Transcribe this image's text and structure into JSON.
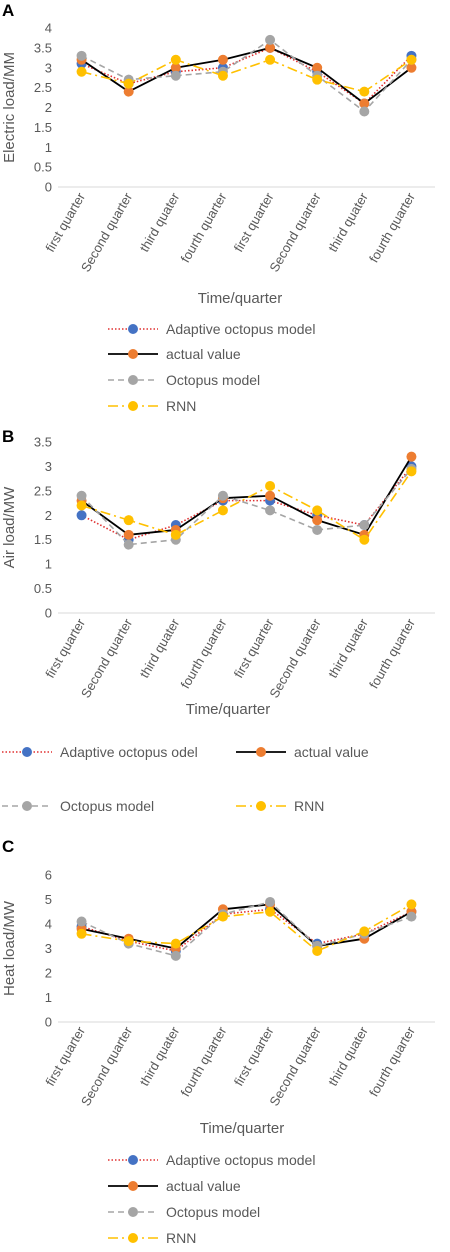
{
  "chart_data": [
    {
      "panel_label": "A",
      "type": "line",
      "ylabel": "Electric load/MM",
      "xlabel": "Time/quarter",
      "categories": [
        "first quarter",
        "Second quarter",
        "third quater",
        "fourth quarter",
        "first quarter",
        "Second quarter",
        "third quater",
        "fourth quarter"
      ],
      "ylim": [
        0,
        4
      ],
      "yticks": [
        "0",
        "0.5",
        "1",
        "1.5",
        "2",
        "2.5",
        "3",
        "3.5",
        "4"
      ],
      "legend": "bottom",
      "series": [
        {
          "name": "Adaptive octopus model",
          "values": [
            3.1,
            2.6,
            2.9,
            3.0,
            3.5,
            2.9,
            2.1,
            3.3
          ],
          "color": "#4472c4",
          "line_color": "#e03030",
          "line": "dotted"
        },
        {
          "name": "actual value",
          "values": [
            3.2,
            2.4,
            3.0,
            3.2,
            3.5,
            3.0,
            2.1,
            3.0
          ],
          "color": "#ed7d31",
          "line_color": "#000000",
          "line": "solid"
        },
        {
          "name": "Octopus model",
          "values": [
            3.3,
            2.7,
            2.8,
            2.9,
            3.7,
            2.8,
            1.9,
            3.2
          ],
          "color": "#a5a5a5",
          "line_color": "#a5a5a5",
          "line": "dashed"
        },
        {
          "name": "RNN",
          "values": [
            2.9,
            2.6,
            3.2,
            2.8,
            3.2,
            2.7,
            2.4,
            3.2
          ],
          "color": "#ffc000",
          "line_color": "#ffc000",
          "line": "dashdot"
        }
      ]
    },
    {
      "panel_label": "B",
      "type": "line",
      "ylabel": "Air load/MW",
      "xlabel": "Time/quarter",
      "categories": [
        "first quarter",
        "Second quarter",
        "third quater",
        "fourth quarter",
        "first quarter",
        "Second quarter",
        "third quater",
        "fourth quarter"
      ],
      "ylim": [
        0,
        3.5
      ],
      "yticks": [
        "0",
        "0.5",
        "1",
        "1.5",
        "2",
        "2.5",
        "3",
        "3.5"
      ],
      "legend": "bottom",
      "series": [
        {
          "name": "Adaptive octopus odel",
          "values": [
            2.0,
            1.5,
            1.8,
            2.3,
            2.3,
            2.0,
            1.8,
            3.0
          ],
          "color": "#4472c4",
          "line_color": "#e03030",
          "line": "dotted"
        },
        {
          "name": "actual value",
          "values": [
            2.3,
            1.6,
            1.7,
            2.35,
            2.4,
            1.9,
            1.6,
            3.2
          ],
          "color": "#ed7d31",
          "line_color": "#000000",
          "line": "solid"
        },
        {
          "name": "Octopus model",
          "values": [
            2.4,
            1.4,
            1.5,
            2.4,
            2.1,
            1.7,
            1.8,
            2.95
          ],
          "color": "#a5a5a5",
          "line_color": "#a5a5a5",
          "line": "dashed"
        },
        {
          "name": "RNN",
          "values": [
            2.2,
            1.9,
            1.6,
            2.1,
            2.6,
            2.1,
            1.5,
            2.9
          ],
          "color": "#ffc000",
          "line_color": "#ffc000",
          "line": "dashdot"
        }
      ]
    },
    {
      "panel_label": "C",
      "type": "line",
      "ylabel": "Heat load/MW",
      "xlabel": "Time/quarter",
      "categories": [
        "first quarter",
        "Second quarter",
        "third quater",
        "fourth quarter",
        "first quarter",
        "Second quarter",
        "third quater",
        "fourth quarter"
      ],
      "ylim": [
        0,
        6
      ],
      "yticks": [
        "0",
        "1",
        "2",
        "3",
        "4",
        "5",
        "6"
      ],
      "legend": "bottom",
      "series": [
        {
          "name": "Adaptive octopus model",
          "values": [
            3.9,
            3.3,
            2.9,
            4.4,
            4.6,
            3.2,
            3.6,
            4.5
          ],
          "color": "#4472c4",
          "line_color": "#e03030",
          "line": "dotted"
        },
        {
          "name": "actual value",
          "values": [
            3.8,
            3.4,
            3.0,
            4.6,
            4.8,
            3.1,
            3.4,
            4.5
          ],
          "color": "#ed7d31",
          "line_color": "#000000",
          "line": "solid"
        },
        {
          "name": "Octopus model",
          "values": [
            4.1,
            3.2,
            2.7,
            4.4,
            4.9,
            3.1,
            3.6,
            4.3
          ],
          "color": "#a5a5a5",
          "line_color": "#a5a5a5",
          "line": "dashed"
        },
        {
          "name": "RNN",
          "values": [
            3.6,
            3.3,
            3.2,
            4.3,
            4.5,
            2.9,
            3.7,
            4.8
          ],
          "color": "#ffc000",
          "line_color": "#ffc000",
          "line": "dashdot"
        }
      ]
    }
  ]
}
